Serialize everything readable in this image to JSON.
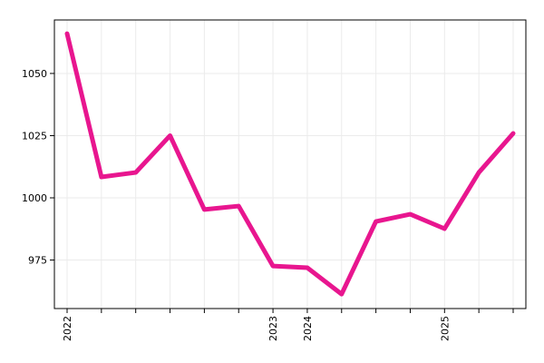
{
  "chart_data": {
    "type": "line",
    "categories": [
      "2022",
      null,
      null,
      null,
      null,
      null,
      "2023",
      "2024",
      null,
      null,
      null,
      "2025",
      null,
      null
    ],
    "series": [
      {
        "color": "#e8168f",
        "values": [
          1066,
          1008.4,
          1010.2,
          1025,
          995.3,
          996.7,
          972.6,
          971.9,
          961.3,
          990.5,
          993.4,
          987.6,
          1010.2,
          1025.9
        ]
      }
    ],
    "ylim": [
      955.5,
      1071.5
    ],
    "yticks": [
      975,
      1000,
      1025,
      1050
    ],
    "grid": true
  }
}
